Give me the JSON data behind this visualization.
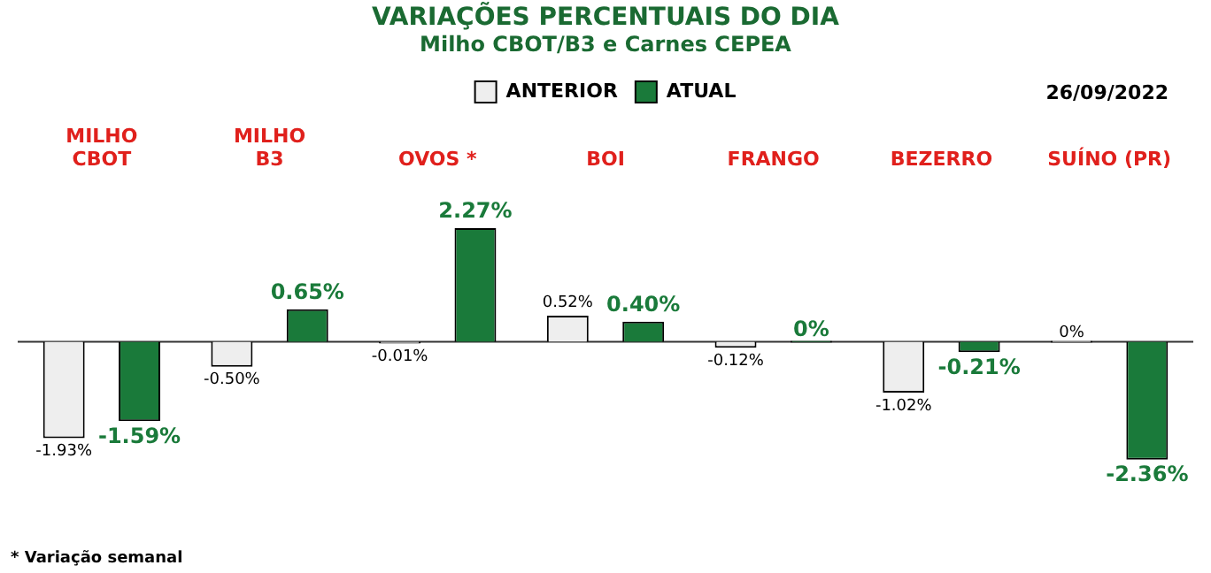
{
  "chart_data": {
    "type": "bar",
    "title": "VARIAÇÕES PERCENTUAIS DO DIA",
    "subtitle": "Milho CBOT/B3 e Carnes CEPEA",
    "categories": [
      "MILHO\nCBOT",
      "MILHO\nB3",
      "OVOS *",
      "BOI",
      "FRANGO",
      "BEZERRO",
      "SUÍNO (PR)"
    ],
    "series": [
      {
        "name": "ANTERIOR",
        "color": "#eeeeee",
        "values": [
          -1.93,
          -0.5,
          -0.01,
          0.52,
          -0.12,
          -1.02,
          0
        ],
        "value_labels": [
          "-1.93%",
          "-0.50%",
          "-0.01%",
          "0.52%",
          "-0.12%",
          "-1.02%",
          "0%"
        ]
      },
      {
        "name": "ATUAL",
        "color": "#1a7a3a",
        "values": [
          -1.59,
          0.65,
          2.27,
          0.4,
          0,
          -0.21,
          -2.36
        ],
        "value_labels": [
          "-1.59%",
          "0.65%",
          "2.27%",
          "0.40%",
          "0%",
          "-0.21%",
          "-2.36%"
        ]
      }
    ],
    "legend": "top",
    "grid": false,
    "annotations": [
      "26/09/2022",
      "* Variação semanal"
    ]
  }
}
